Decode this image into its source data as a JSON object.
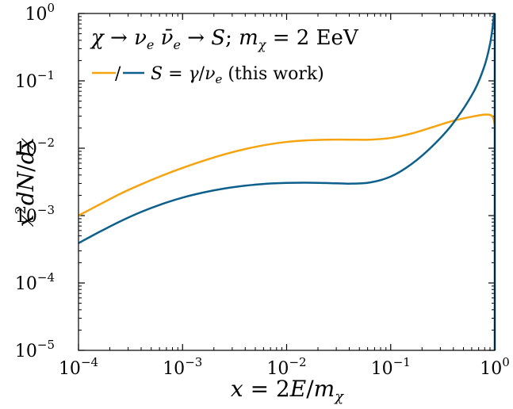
{
  "chart_data": {
    "type": "line",
    "title": "χ → ν_e ν̄_e → S; m_χ = 2 EeV",
    "xlabel": "x = 2E/m_χ",
    "ylabel": "x²dN/dx",
    "xscale": "log",
    "yscale": "log",
    "xlim": [
      0.0001,
      1
    ],
    "ylim": [
      1e-05,
      1
    ],
    "grid": false,
    "legend_position": "upper-left",
    "legend_label": "/ S = γ/ν_e (this work)",
    "x_ticks": [
      {
        "value": 0.0001,
        "base": "10",
        "exp": "−4"
      },
      {
        "value": 0.001,
        "base": "10",
        "exp": "−3"
      },
      {
        "value": 0.01,
        "base": "10",
        "exp": "−2"
      },
      {
        "value": 0.1,
        "base": "10",
        "exp": "−1"
      },
      {
        "value": 1,
        "base": "10",
        "exp": "0"
      }
    ],
    "y_ticks": [
      {
        "value": 1e-05,
        "base": "10",
        "exp": "−5"
      },
      {
        "value": 0.0001,
        "base": "10",
        "exp": "−4"
      },
      {
        "value": 0.001,
        "base": "10",
        "exp": "−3"
      },
      {
        "value": 0.01,
        "base": "10",
        "exp": "−2"
      },
      {
        "value": 0.1,
        "base": "10",
        "exp": "−1"
      },
      {
        "value": 1,
        "base": "10",
        "exp": "0"
      }
    ],
    "series": [
      {
        "color": "#f5a30f",
        "x": [
          0.0001,
          0.000158,
          0.000251,
          0.000398,
          0.000631,
          0.001,
          0.00158,
          0.00251,
          0.00398,
          0.00631,
          0.01,
          0.0158,
          0.0251,
          0.0398,
          0.0631,
          0.1,
          0.158,
          0.251,
          0.398,
          0.631,
          0.8,
          0.9,
          0.95,
          0.98,
          1.0
        ],
        "y": [
          0.001,
          0.00145,
          0.0021,
          0.0029,
          0.0039,
          0.0051,
          0.0065,
          0.0081,
          0.0097,
          0.0112,
          0.0124,
          0.0131,
          0.0134,
          0.0134,
          0.0134,
          0.0142,
          0.0165,
          0.0205,
          0.0255,
          0.0298,
          0.0315,
          0.0312,
          0.0295,
          0.026,
          0.022
        ]
      },
      {
        "color": "#0d5f8c",
        "x": [
          0.0001,
          0.000158,
          0.000251,
          0.000398,
          0.000631,
          0.001,
          0.00158,
          0.00251,
          0.00398,
          0.00631,
          0.01,
          0.0158,
          0.0251,
          0.0398,
          0.0631,
          0.1,
          0.158,
          0.251,
          0.398,
          0.631,
          0.8,
          0.9,
          0.95,
          0.98,
          1.0
        ],
        "y": [
          0.00039,
          0.00057,
          0.00082,
          0.00113,
          0.00148,
          0.00185,
          0.0022,
          0.00252,
          0.00278,
          0.00297,
          0.00306,
          0.00308,
          0.00304,
          0.00298,
          0.0031,
          0.0038,
          0.0058,
          0.0107,
          0.0235,
          0.07,
          0.17,
          0.35,
          0.6,
          0.9,
          1.0
        ]
      }
    ]
  }
}
